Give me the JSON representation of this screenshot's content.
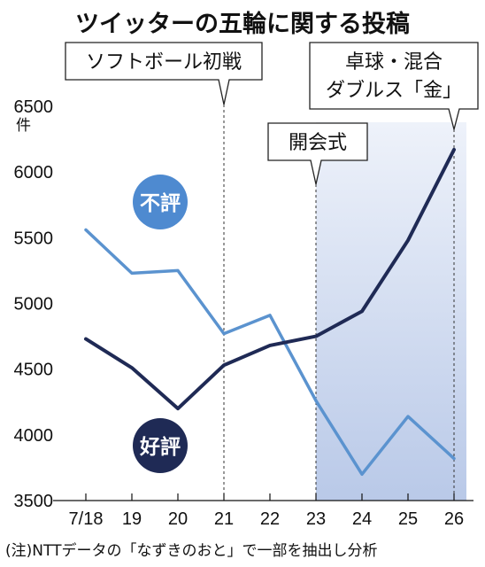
{
  "title": "ツイッターの五輪に関する投稿",
  "y_unit": "件",
  "note": "(注)NTTデータの「なずきのおと」で一部を抽出し分析",
  "colors": {
    "negative": "#5b93cf",
    "positive": "#1f2a55",
    "badge_negative": "#4e8ad0",
    "badge_positive": "#1f2a55",
    "shade_light": "#eef2fa",
    "shade_dark": "#b9c9e8"
  },
  "annotations": [
    {
      "id": "softball",
      "lines": [
        "ソフトボール初戦"
      ],
      "x": "21"
    },
    {
      "id": "ceremony",
      "lines": [
        "開会式"
      ],
      "x": "23"
    },
    {
      "id": "tabletennis",
      "lines": [
        "卓球・混合",
        "ダブルス「金」"
      ],
      "x": "26"
    }
  ],
  "chart_data": {
    "type": "line",
    "title": "ツイッターの五輪に関する投稿",
    "categories": [
      "7/18",
      "19",
      "20",
      "21",
      "22",
      "23",
      "24",
      "25",
      "26"
    ],
    "ylabel": "件",
    "ylim": [
      3500,
      6500
    ],
    "yticks": [
      3500,
      4000,
      4500,
      5000,
      5500,
      6000,
      6500
    ],
    "grid": false,
    "shaded_range": [
      "23",
      "26"
    ],
    "series": [
      {
        "name": "不評",
        "color": "#5b93cf",
        "values": [
          5560,
          5230,
          5250,
          4770,
          4910,
          4260,
          3700,
          4140,
          3820
        ]
      },
      {
        "name": "好評",
        "color": "#1f2a55",
        "values": [
          4730,
          4510,
          4200,
          4530,
          4680,
          4750,
          4940,
          5480,
          6170
        ]
      }
    ]
  }
}
